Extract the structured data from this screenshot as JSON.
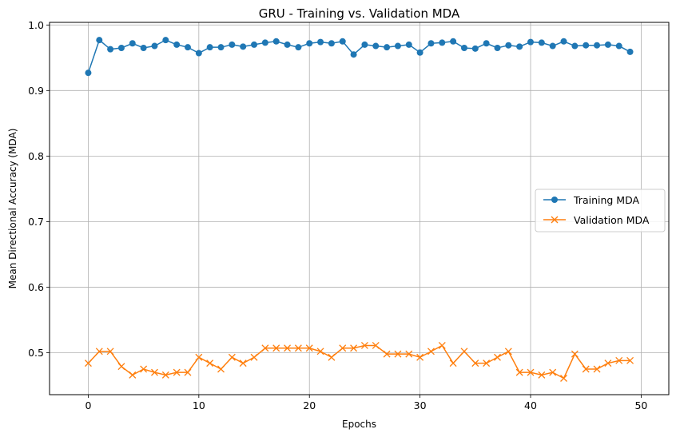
{
  "chart_data": {
    "type": "line",
    "title": "GRU - Training vs. Validation MDA",
    "xlabel": "Epochs",
    "ylabel": "Mean Directional Accuracy (MDA)",
    "xlim": [
      -3.5,
      52.5
    ],
    "ylim": [
      0.436,
      1.004
    ],
    "xticks": [
      0,
      10,
      20,
      30,
      40,
      50
    ],
    "yticks": [
      0.5,
      0.6,
      0.7,
      0.8,
      0.9,
      1.0
    ],
    "xtick_labels": [
      "0",
      "10",
      "20",
      "30",
      "40",
      "50"
    ],
    "ytick_labels": [
      "0.5",
      "0.6",
      "0.7",
      "0.8",
      "0.9",
      "1.0"
    ],
    "grid": true,
    "legend_position": "center-right",
    "x": [
      0,
      1,
      2,
      3,
      4,
      5,
      6,
      7,
      8,
      9,
      10,
      11,
      12,
      13,
      14,
      15,
      16,
      17,
      18,
      19,
      20,
      21,
      22,
      23,
      24,
      25,
      26,
      27,
      28,
      29,
      30,
      31,
      32,
      33,
      34,
      35,
      36,
      37,
      38,
      39,
      40,
      41,
      42,
      43,
      44,
      45,
      46,
      47,
      48,
      49
    ],
    "series": [
      {
        "name": "Training MDA",
        "color": "#1f77b4",
        "marker": "circle",
        "values": [
          0.927,
          0.977,
          0.963,
          0.965,
          0.972,
          0.965,
          0.968,
          0.977,
          0.97,
          0.966,
          0.957,
          0.966,
          0.966,
          0.97,
          0.967,
          0.97,
          0.973,
          0.975,
          0.97,
          0.966,
          0.972,
          0.974,
          0.972,
          0.975,
          0.955,
          0.97,
          0.968,
          0.966,
          0.968,
          0.97,
          0.958,
          0.972,
          0.973,
          0.975,
          0.965,
          0.964,
          0.972,
          0.965,
          0.969,
          0.967,
          0.974,
          0.973,
          0.968,
          0.975,
          0.968,
          0.969,
          0.969,
          0.97,
          0.968,
          0.959
        ]
      },
      {
        "name": "Validation MDA",
        "color": "#ff7f0e",
        "marker": "x",
        "values": [
          0.484,
          0.502,
          0.502,
          0.479,
          0.466,
          0.475,
          0.47,
          0.466,
          0.47,
          0.47,
          0.493,
          0.484,
          0.475,
          0.493,
          0.484,
          0.493,
          0.507,
          0.507,
          0.507,
          0.507,
          0.507,
          0.502,
          0.493,
          0.507,
          0.507,
          0.511,
          0.511,
          0.498,
          0.498,
          0.498,
          0.493,
          0.502,
          0.511,
          0.484,
          0.502,
          0.484,
          0.484,
          0.493,
          0.502,
          0.47,
          0.47,
          0.466,
          0.47,
          0.461,
          0.498,
          0.475,
          0.475,
          0.484,
          0.488,
          0.488
        ]
      }
    ]
  }
}
